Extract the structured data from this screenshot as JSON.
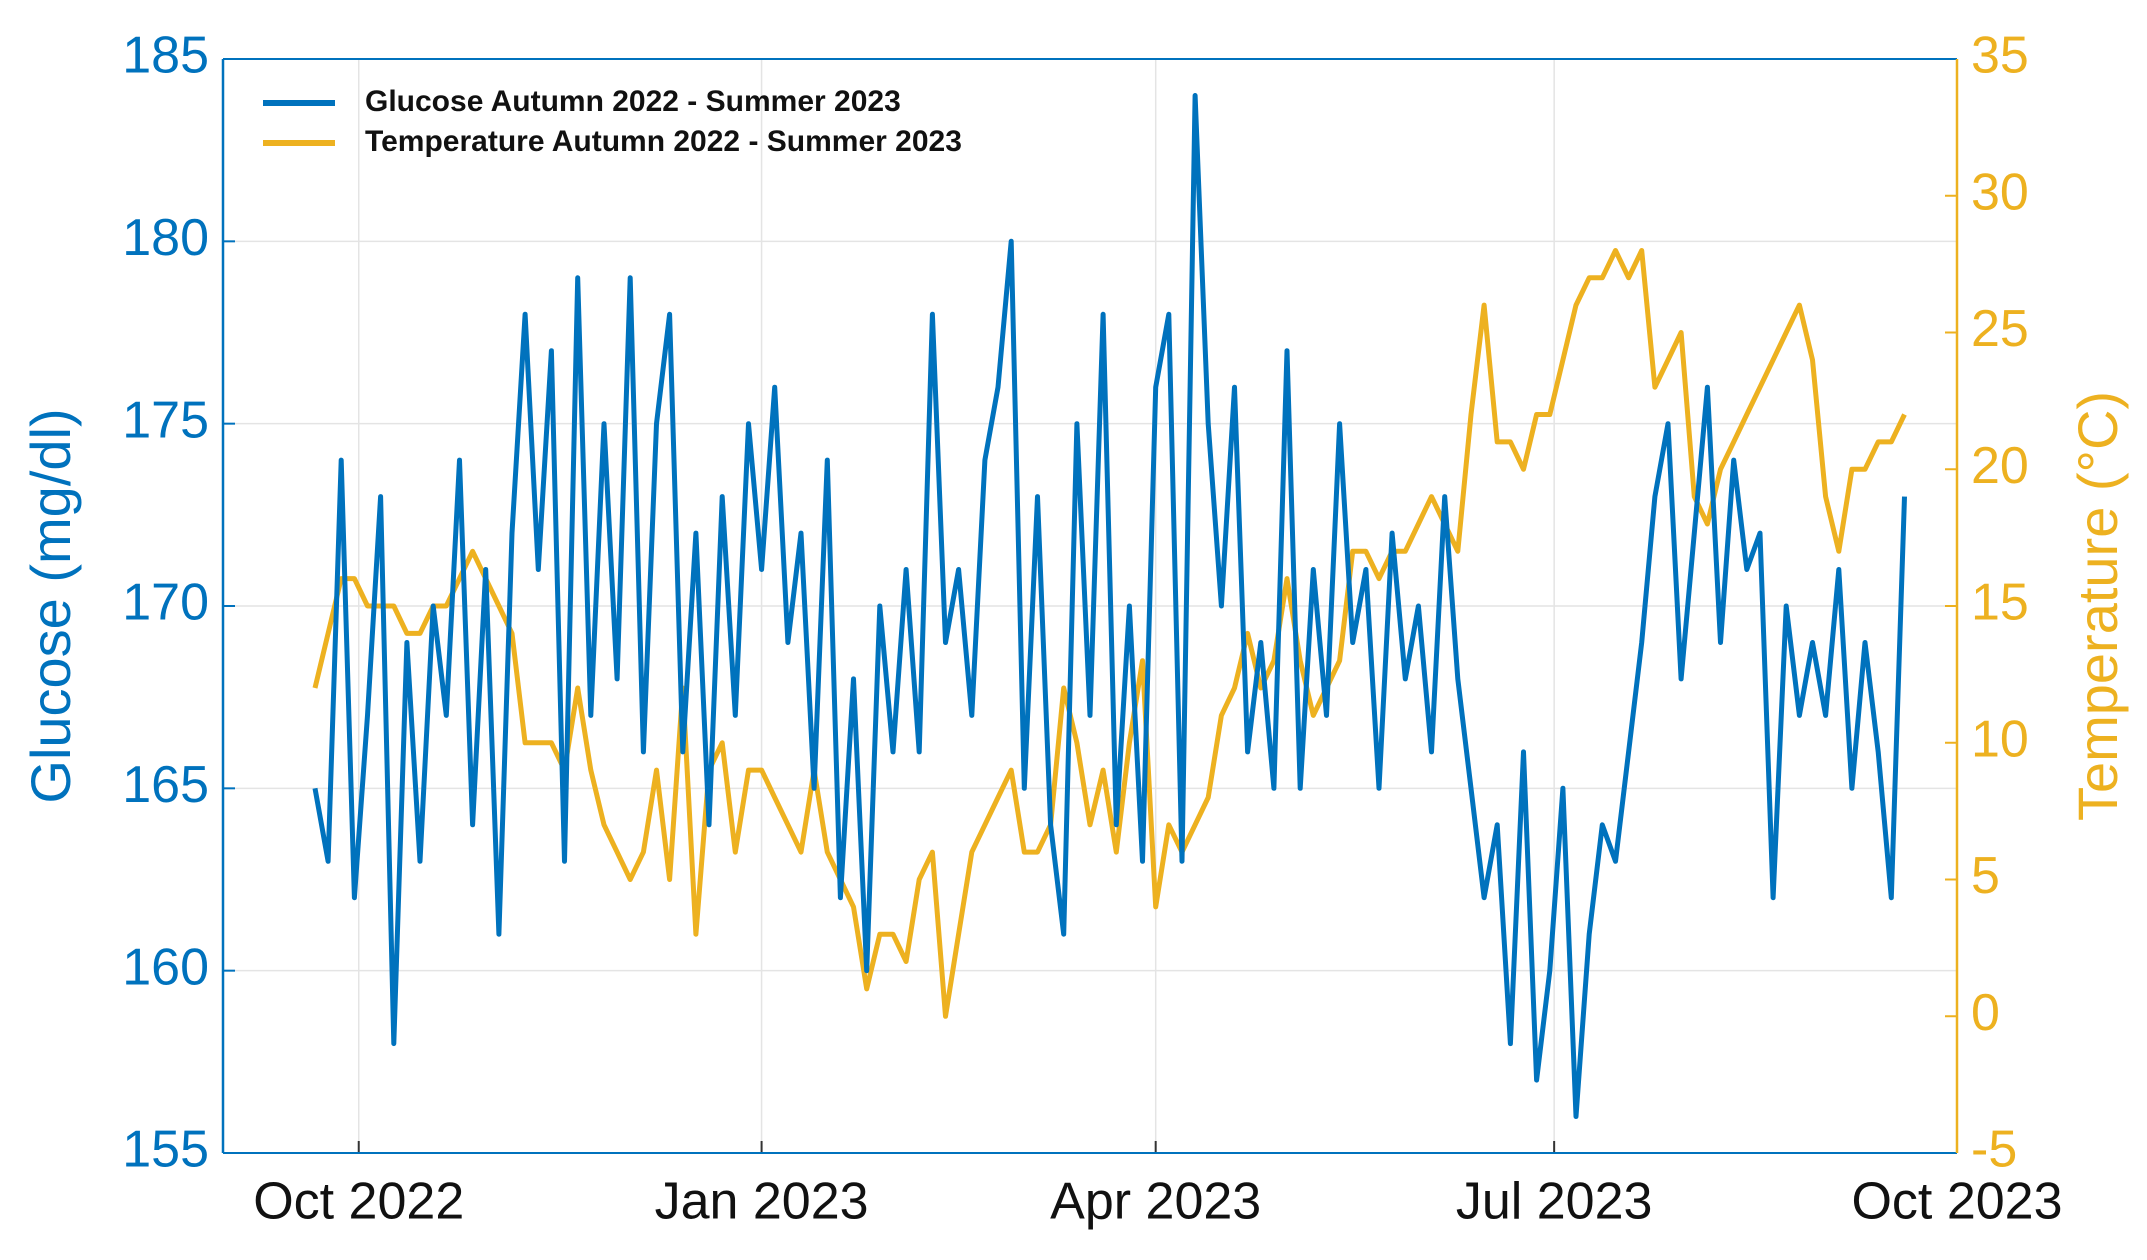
{
  "chart_data": {
    "type": "line",
    "y_label": "Glucose (mg/dl)",
    "y2_label": "Temperature (°C)",
    "x": [
      -10,
      -7,
      -4,
      -1,
      2,
      5,
      8,
      11,
      14,
      17,
      20,
      23,
      26,
      29,
      32,
      35,
      38,
      41,
      44,
      47,
      50,
      53,
      56,
      59,
      62,
      65,
      68,
      71,
      74,
      77,
      80,
      83,
      86,
      89,
      92,
      95,
      98,
      101,
      104,
      107,
      110,
      113,
      116,
      119,
      122,
      125,
      128,
      131,
      134,
      137,
      140,
      143,
      146,
      149,
      152,
      155,
      158,
      161,
      164,
      167,
      170,
      173,
      176,
      179,
      182,
      185,
      188,
      191,
      194,
      197,
      200,
      203,
      206,
      209,
      212,
      215,
      218,
      221,
      224,
      227,
      230,
      233,
      236,
      239,
      242,
      245,
      248,
      251,
      254,
      257,
      260,
      263,
      266,
      269,
      272,
      275,
      278,
      281,
      284,
      287,
      290,
      293,
      296,
      299,
      302,
      305,
      308,
      311,
      314,
      317,
      320,
      323,
      326,
      329,
      332,
      335,
      338,
      341,
      344,
      347,
      350,
      353
    ],
    "series": [
      {
        "name": "Glucose Autumn 2022 - Summer 2023",
        "color": "#0072BD",
        "axis": "y",
        "values": [
          165,
          163,
          174,
          162,
          167,
          173,
          158,
          169,
          163,
          170,
          167,
          174,
          164,
          171,
          161,
          172,
          178,
          171,
          177,
          163,
          179,
          167,
          175,
          168,
          179,
          166,
          175,
          178,
          166,
          172,
          164,
          173,
          167,
          175,
          171,
          176,
          169,
          172,
          165,
          174,
          162,
          168,
          160,
          170,
          166,
          171,
          166,
          178,
          169,
          171,
          167,
          174,
          176,
          180,
          165,
          173,
          164,
          161,
          175,
          167,
          178,
          164,
          170,
          163,
          176,
          178,
          163,
          184,
          175,
          170,
          176,
          166,
          169,
          165,
          177,
          165,
          171,
          167,
          175,
          169,
          171,
          165,
          172,
          168,
          170,
          166,
          173,
          168,
          165,
          162,
          164,
          158,
          166,
          157,
          160,
          165,
          156,
          161,
          164,
          163,
          166,
          169,
          173,
          175,
          168,
          172,
          176,
          169,
          174,
          171,
          172,
          162,
          170,
          167,
          169,
          167,
          171,
          165,
          169,
          166,
          162,
          173
        ]
      },
      {
        "name": "Temperature Autumn 2022 - Summer 2023",
        "color": "#EDB120",
        "axis": "y2",
        "values": [
          12,
          14,
          16,
          16,
          15,
          15,
          15,
          14,
          14,
          15,
          15,
          16,
          17,
          16,
          15,
          14,
          10,
          10,
          10,
          9,
          12,
          9,
          7,
          6,
          5,
          6,
          9,
          5,
          12,
          3,
          9,
          10,
          6,
          9,
          9,
          8,
          7,
          6,
          9,
          6,
          5,
          4,
          1,
          3,
          3,
          2,
          5,
          6,
          0,
          3,
          6,
          7,
          8,
          9,
          6,
          6,
          7,
          12,
          10,
          7,
          9,
          6,
          10,
          13,
          4,
          7,
          6,
          7,
          8,
          11,
          12,
          14,
          12,
          13,
          16,
          13,
          11,
          12,
          13,
          17,
          17,
          16,
          17,
          17,
          18,
          19,
          18,
          17,
          22,
          26,
          21,
          21,
          20,
          22,
          22,
          24,
          26,
          27,
          27,
          28,
          27,
          28,
          23,
          24,
          25,
          19,
          18,
          20,
          21,
          22,
          23,
          24,
          25,
          26,
          24,
          19,
          17,
          20,
          20,
          21,
          21,
          22
        ]
      }
    ],
    "xlim": [
      -31,
      365
    ],
    "xticks": [
      {
        "value": 0,
        "label": "Oct 2022"
      },
      {
        "value": 92,
        "label": "Jan 2023"
      },
      {
        "value": 182,
        "label": "Apr 2023"
      },
      {
        "value": 273,
        "label": "Jul 2023"
      },
      {
        "value": 365,
        "label": "Oct 2023"
      }
    ],
    "ylim": [
      155,
      185
    ],
    "yticks": [
      155,
      160,
      165,
      170,
      175,
      180,
      185
    ],
    "y2lim": [
      -5,
      35
    ],
    "y2ticks": [
      -5,
      0,
      5,
      10,
      15,
      20,
      25,
      30,
      35
    ],
    "grid": true,
    "legend": "upper left"
  }
}
